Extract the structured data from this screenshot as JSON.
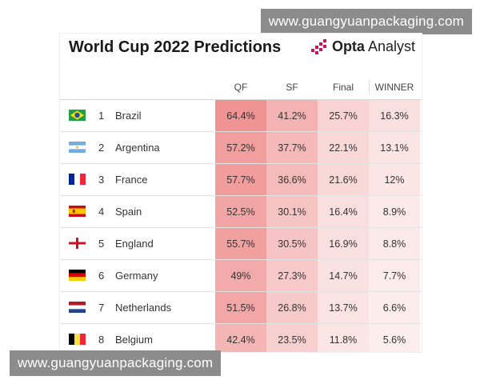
{
  "watermark": {
    "top": "www.guangyuanpackaging.com",
    "bottom": "www.guangyuanpackaging.com"
  },
  "header": {
    "title": "World Cup 2022 Predictions",
    "brand_bold": "Opta",
    "brand_rest": "Analyst"
  },
  "columns": [
    "QF",
    "SF",
    "Final",
    "WINNER"
  ],
  "rows": [
    {
      "rank": "1",
      "country": "Brazil",
      "flag": "brazil-flag-icon",
      "values": [
        "64.4%",
        "41.2%",
        "25.7%",
        "16.3%"
      ]
    },
    {
      "rank": "2",
      "country": "Argentina",
      "flag": "argentina-flag-icon",
      "values": [
        "57.2%",
        "37.7%",
        "22.1%",
        "13.1%"
      ]
    },
    {
      "rank": "3",
      "country": "France",
      "flag": "france-flag-icon",
      "values": [
        "57.7%",
        "36.6%",
        "21.6%",
        "12%"
      ]
    },
    {
      "rank": "4",
      "country": "Spain",
      "flag": "spain-flag-icon",
      "values": [
        "52.5%",
        "30.1%",
        "16.4%",
        "8.9%"
      ]
    },
    {
      "rank": "5",
      "country": "England",
      "flag": "england-flag-icon",
      "values": [
        "55.7%",
        "30.5%",
        "16.9%",
        "8.8%"
      ]
    },
    {
      "rank": "6",
      "country": "Germany",
      "flag": "germany-flag-icon",
      "values": [
        "49%",
        "27.3%",
        "14.7%",
        "7.7%"
      ]
    },
    {
      "rank": "7",
      "country": "Netherlands",
      "flag": "netherlands-flag-icon",
      "values": [
        "51.5%",
        "26.8%",
        "13.7%",
        "6.6%"
      ]
    },
    {
      "rank": "8",
      "country": "Belgium",
      "flag": "belgium-flag-icon",
      "values": [
        "42.4%",
        "23.5%",
        "11.8%",
        "5.6%"
      ]
    }
  ]
}
